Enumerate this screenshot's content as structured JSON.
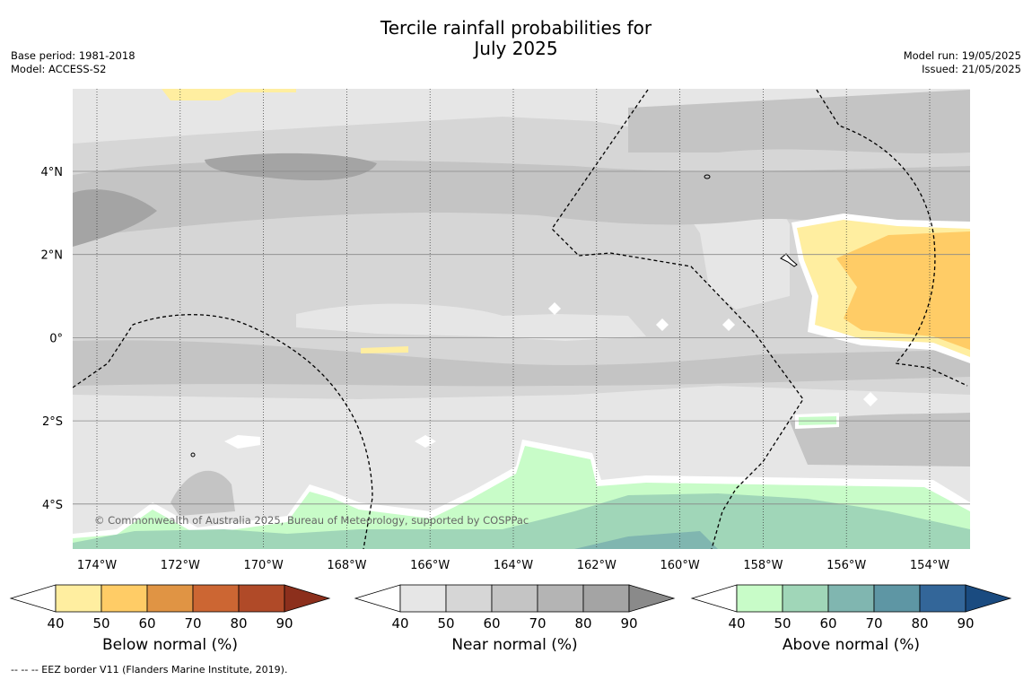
{
  "title": {
    "line1": "Tercile rainfall probabilities for",
    "line2": "July 2025"
  },
  "left_info": {
    "base_period": "Base period: 1981-2018",
    "model": "Model: ACCESS-S2"
  },
  "right_info": {
    "model_run": "Model run: 19/05/2025",
    "issued": "Issued: 21/05/2025"
  },
  "map": {
    "x_ticks": [
      "174°W",
      "172°W",
      "170°W",
      "168°W",
      "166°W",
      "164°W",
      "162°W",
      "160°W",
      "158°W",
      "156°W",
      "154°W"
    ],
    "y_ticks": [
      "4°N",
      "2°N",
      "0°",
      "2°S",
      "4°S"
    ],
    "copyright": "© Commonwealth of Australia 2025, Bureau of Meteorology, supported by COSPPac",
    "lon_range": [
      -174.6,
      -153.0
    ],
    "lat_range": [
      -5.0,
      5.9
    ]
  },
  "colorbars": [
    {
      "label": "Below normal (%)",
      "ticks": [
        "40",
        "50",
        "60",
        "70",
        "80",
        "90"
      ],
      "colors": [
        "#ffeea0",
        "#ffcc66",
        "#e09444",
        "#cc6633",
        "#b04a28",
        "#8c2f1c"
      ]
    },
    {
      "label": "Near normal (%)",
      "ticks": [
        "40",
        "50",
        "60",
        "70",
        "80",
        "90"
      ],
      "colors": [
        "#e6e6e6",
        "#d6d6d6",
        "#c4c4c4",
        "#b4b4b4",
        "#a4a4a4",
        "#8a8a8a"
      ]
    },
    {
      "label": "Above normal (%)",
      "ticks": [
        "40",
        "50",
        "60",
        "70",
        "80",
        "90"
      ],
      "colors": [
        "#c8fcc8",
        "#a0d6b8",
        "#80b6b0",
        "#5e96a4",
        "#336699",
        "#1a4b80"
      ]
    }
  ],
  "footer": "--  --  -- EEZ border V11 (Flanders Marine Institute, 2019)."
}
